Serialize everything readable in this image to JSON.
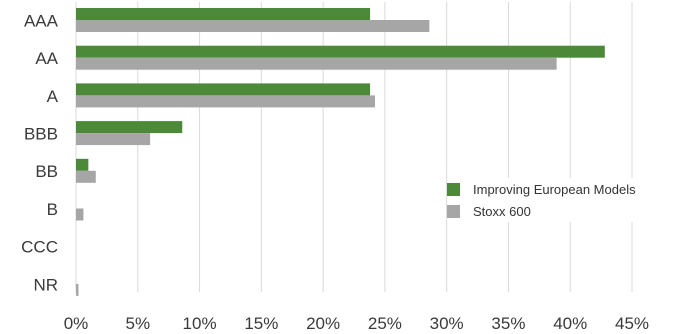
{
  "chart_data": {
    "type": "bar",
    "orientation": "horizontal",
    "categories": [
      "AAA",
      "AA",
      "A",
      "BBB",
      "BB",
      "B",
      "CCC",
      "NR"
    ],
    "series": [
      {
        "name": "Improving European Models",
        "color": "#4c8a3a",
        "values": [
          23.8,
          42.8,
          23.8,
          8.6,
          1.0,
          0.0,
          0.0,
          0.0
        ]
      },
      {
        "name": "Stoxx 600",
        "color": "#a6a6a6",
        "values": [
          28.6,
          38.9,
          24.2,
          6.0,
          1.6,
          0.6,
          0.0,
          0.2
        ]
      }
    ],
    "x_ticks": [
      "0%",
      "5%",
      "10%",
      "15%",
      "20%",
      "25%",
      "30%",
      "35%",
      "40%",
      "45%"
    ],
    "xlim": [
      0,
      45
    ],
    "grid": true,
    "legend_position": "right",
    "title": "",
    "xlabel": "",
    "ylabel": ""
  }
}
